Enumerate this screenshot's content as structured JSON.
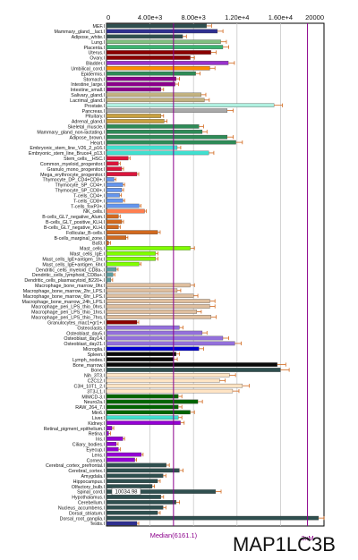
{
  "chart_data": {
    "type": "bar",
    "orientation": "horizontal",
    "title": "MAP1LC3B",
    "xlim": [
      0,
      20000
    ],
    "x_ticks": [
      {
        "value": 0,
        "label": "0"
      },
      {
        "value": 4000,
        "label": "4.00e+3"
      },
      {
        "value": 8000,
        "label": "8.00e+3"
      },
      {
        "value": 12000,
        "label": "1.20e+4"
      },
      {
        "value": 16000,
        "label": "1.60e+4"
      },
      {
        "value": 20000,
        "label": "20000"
      }
    ],
    "median": {
      "value": 6161.1,
      "label": "Median(6161.1)"
    },
    "three_x_median": {
      "value": 18483.3,
      "label": "3xM"
    },
    "annotation": {
      "label": "10034.98",
      "row": "Spinal_cord.I"
    },
    "grid": true,
    "rows": [
      {
        "label": "MEF.I",
        "value": 9200,
        "color": "#2f4f4f"
      },
      {
        "label": "Mammary_gland__lact.I",
        "value": 10200,
        "color": "#2f2f8f"
      },
      {
        "label": "Adipose_white.I",
        "value": 7000,
        "color": "#2f4f4f"
      },
      {
        "label": "Lung.I",
        "value": 10500,
        "color": "#7fbf7f"
      },
      {
        "label": "Placenta.I",
        "value": 10700,
        "color": "#3cb371"
      },
      {
        "label": "Uterus.I",
        "value": 9600,
        "color": "#8b0000"
      },
      {
        "label": "Ovary.I",
        "value": 7700,
        "color": "#8b0000"
      },
      {
        "label": "Bladder.I",
        "value": 11200,
        "color": "#9932cc"
      },
      {
        "label": "Umbilical_cord.I",
        "value": 9500,
        "color": "#ff8c00"
      },
      {
        "label": "Epidermis.I",
        "value": 8200,
        "color": "#2e8b57"
      },
      {
        "label": "Stomach.I",
        "value": 6400,
        "color": "#8b008b"
      },
      {
        "label": "Intestine_large.I",
        "value": 6300,
        "color": "#8b008b"
      },
      {
        "label": "Intestine_small.I",
        "value": 5000,
        "color": "#8b008b"
      },
      {
        "label": "Salivary_gland.I",
        "value": 8700,
        "color": "#c2b280"
      },
      {
        "label": "Lacrimal_gland.I",
        "value": 9000,
        "color": "#c2b280"
      },
      {
        "label": "Prostate.I",
        "value": 15400,
        "color": "#b0f0e0"
      },
      {
        "label": "Pancreas.I",
        "value": 11100,
        "color": "#a9a9a9"
      },
      {
        "label": "Pituitary.I",
        "value": 5000,
        "color": "#c8a040"
      },
      {
        "label": "Adrenal_gland.I",
        "value": 5300,
        "color": "#c8a040"
      },
      {
        "label": "Skeletal_muscle.I",
        "value": 8500,
        "color": "#2e8b57"
      },
      {
        "label": "Mammary_gland_non-lactating.I",
        "value": 8800,
        "color": "#2e8b57"
      },
      {
        "label": "Adipose_brown.I",
        "value": 11100,
        "color": "#2e8b57"
      },
      {
        "label": "Heart.I",
        "value": 11900,
        "color": "#2e8b57"
      },
      {
        "label": "Embryonic_stem_line_V26_2_p16.I",
        "value": 6500,
        "color": "#40e0d0"
      },
      {
        "label": "Embryonic_stem_line_Bruce4_p13.I",
        "value": 9400,
        "color": "#40e0d0"
      },
      {
        "label": "Stem_cells__HSC.I",
        "value": 2000,
        "color": "#dc143c"
      },
      {
        "label": "Common_myeloid_progenitor.I",
        "value": 1100,
        "color": "#dc143c"
      },
      {
        "label": "Granulo_mono_progenitor.I",
        "value": 1400,
        "color": "#dc143c"
      },
      {
        "label": "Mega_erythrocyte_progenitor.I",
        "value": 2800,
        "color": "#dc143c"
      },
      {
        "label": "Thymocyte_DP_CD4+CD8+.I",
        "value": 700,
        "color": "#6495ed"
      },
      {
        "label": "Thymocyte_SP_CD4+.I",
        "value": 1500,
        "color": "#6495ed"
      },
      {
        "label": "Thymocyte_SP_CD8+.I",
        "value": 1400,
        "color": "#6495ed"
      },
      {
        "label": "T-cells_CD4+.I",
        "value": 1200,
        "color": "#6495ed"
      },
      {
        "label": "T-cells_CD8+.I",
        "value": 1500,
        "color": "#6495ed"
      },
      {
        "label": "T-cells_foxP3+.I",
        "value": 3000,
        "color": "#6495ed"
      },
      {
        "label": "NK_cells.I",
        "value": 3500,
        "color": "#ff7f50"
      },
      {
        "label": "B-cells_GL7_negative_Alum.I",
        "value": 1100,
        "color": "#d2691e"
      },
      {
        "label": "B-cells_GL7_positive_KLH.I",
        "value": 1400,
        "color": "#d2691e"
      },
      {
        "label": "B-cells_GL7_negative_KLH.I",
        "value": 1100,
        "color": "#d2691e"
      },
      {
        "label": "Follicular_B-cells.I",
        "value": 4700,
        "color": "#d2691e"
      },
      {
        "label": "B-cells_marginal_zone.I",
        "value": 1800,
        "color": "#d2691e"
      },
      {
        "label": "Baf3.I",
        "value": 200,
        "color": "#d2691e"
      },
      {
        "label": "Mast_cells.I",
        "value": 7700,
        "color": "#7fff00"
      },
      {
        "label": "Mast_cells_IgE.I",
        "value": 4500,
        "color": "#7fff00"
      },
      {
        "label": "Mast_cells_IgE+antigen_1hr.I",
        "value": 4500,
        "color": "#7fff00"
      },
      {
        "label": "Mast_cells_IgE+antigen_6hr.I",
        "value": 3000,
        "color": "#7fff00"
      },
      {
        "label": "Dendritic_cells_myeloid_CD8a-.I",
        "value": 900,
        "color": "#5f9ea0"
      },
      {
        "label": "Dendritic_cells_lymphoid_CD8a+.I",
        "value": 600,
        "color": "#5f9ea0"
      },
      {
        "label": "Dendritic_cells_plasmacytoid_B220+.I",
        "value": 400,
        "color": "#5f9ea0"
      },
      {
        "label": "Macrophage_bone_marrow_0hr.I",
        "value": 7700,
        "color": "#dfbf9f"
      },
      {
        "label": "Macrophage_bone_marrow_2hr_LPS.I",
        "value": 6500,
        "color": "#dfbf9f"
      },
      {
        "label": "Macrophage_bone_marrow_6hr_LPS.I",
        "value": 8000,
        "color": "#dfbf9f"
      },
      {
        "label": "Macrophage_bone_marrow_24h_LPS.I",
        "value": 9500,
        "color": "#dfbf9f"
      },
      {
        "label": "Macrophage_peri_LPS_thio_0hrs.I",
        "value": 9500,
        "color": "#dfbf9f"
      },
      {
        "label": "Macrophage_peri_LPS_thio_1hrs.I",
        "value": 8300,
        "color": "#dfbf9f"
      },
      {
        "label": "Macrophage_peri_LPS_thio_7hrs.I",
        "value": 9600,
        "color": "#dfbf9f"
      },
      {
        "label": "Granulocytes_mac1+gr1+.I",
        "value": 2800,
        "color": "#8b0000"
      },
      {
        "label": "Osteoclasts.I",
        "value": 6700,
        "color": "#9370db"
      },
      {
        "label": "Osteoblast_day5.I",
        "value": 8800,
        "color": "#9370db"
      },
      {
        "label": "Osteoblast_day14.I",
        "value": 10700,
        "color": "#9370db"
      },
      {
        "label": "Osteoblast_day21.I",
        "value": 11800,
        "color": "#9370db"
      },
      {
        "label": "Microglia.I",
        "value": 8500,
        "color": "#0000cd"
      },
      {
        "label": "Spleen.I",
        "value": 6400,
        "color": "#0a0a0a"
      },
      {
        "label": "Lymph_nodes.I",
        "value": 6200,
        "color": "#0a0a0a"
      },
      {
        "label": "Bone_marrow.I",
        "value": 15700,
        "color": "#0a0a0a"
      },
      {
        "label": "Bone.I",
        "value": 16000,
        "color": "#2f4f4f"
      },
      {
        "label": "Nih_3T3.I",
        "value": 11300,
        "color": "#ffe4c4"
      },
      {
        "label": "C2C12.I",
        "value": 10400,
        "color": "#ffe4c4"
      },
      {
        "label": "C3H_10T1_2.I",
        "value": 12500,
        "color": "#ffe4c4"
      },
      {
        "label": "3T3-L1.I",
        "value": 11600,
        "color": "#ffe4c4"
      },
      {
        "label": "MIMCD-3.I",
        "value": 6600,
        "color": "#006400"
      },
      {
        "label": "Neuro2a.I",
        "value": 8400,
        "color": "#006400"
      },
      {
        "label": "RAW_264_7.I",
        "value": 6600,
        "color": "#006400"
      },
      {
        "label": "Min6.I",
        "value": 7700,
        "color": "#006400"
      },
      {
        "label": "Liver.I",
        "value": 6600,
        "color": "#40e0d0"
      },
      {
        "label": "Kidney.I",
        "value": 6800,
        "color": "#9400d3"
      },
      {
        "label": "Retinal_pigment_epithelium.I",
        "value": 500,
        "color": "#9400d3"
      },
      {
        "label": "Retina.I",
        "value": 200,
        "color": "#9400d3"
      },
      {
        "label": "Iris.I",
        "value": 1500,
        "color": "#9400d3"
      },
      {
        "label": "Ciliary_bodies.I",
        "value": 900,
        "color": "#9400d3"
      },
      {
        "label": "Eyecup.I",
        "value": 1100,
        "color": "#9400d3"
      },
      {
        "label": "Lens.I",
        "value": 3200,
        "color": "#9400d3"
      },
      {
        "label": "Cornea.I",
        "value": 2600,
        "color": "#9400d3"
      },
      {
        "label": "Cerebral_cortex_prefrontal.I",
        "value": 5500,
        "color": "#2f4f4f"
      },
      {
        "label": "Cerebral_cortex.I",
        "value": 6700,
        "color": "#2f4f4f"
      },
      {
        "label": "Amygdala.I",
        "value": 5200,
        "color": "#2f4f4f"
      },
      {
        "label": "Hippocampus.I",
        "value": 4700,
        "color": "#2f4f4f"
      },
      {
        "label": "Olfactory_bulb.I",
        "value": 4200,
        "color": "#2f4f4f"
      },
      {
        "label": "Spinal_cord.I",
        "value": 10035,
        "color": "#2f4f4f"
      },
      {
        "label": "Hypothalamus.I",
        "value": 5000,
        "color": "#2f4f4f"
      },
      {
        "label": "Cerebellum.I",
        "value": 6400,
        "color": "#2f4f4f"
      },
      {
        "label": "Nucleus_accumbens.I",
        "value": 5200,
        "color": "#2f4f4f"
      },
      {
        "label": "Dorsal_striatum.I",
        "value": 4700,
        "color": "#2f4f4f"
      },
      {
        "label": "Dorsal_root_ganglia.I",
        "value": 19500,
        "color": "#2f4f4f"
      },
      {
        "label": "Testis.I",
        "value": 2800,
        "color": "#2f2f8f"
      }
    ]
  }
}
